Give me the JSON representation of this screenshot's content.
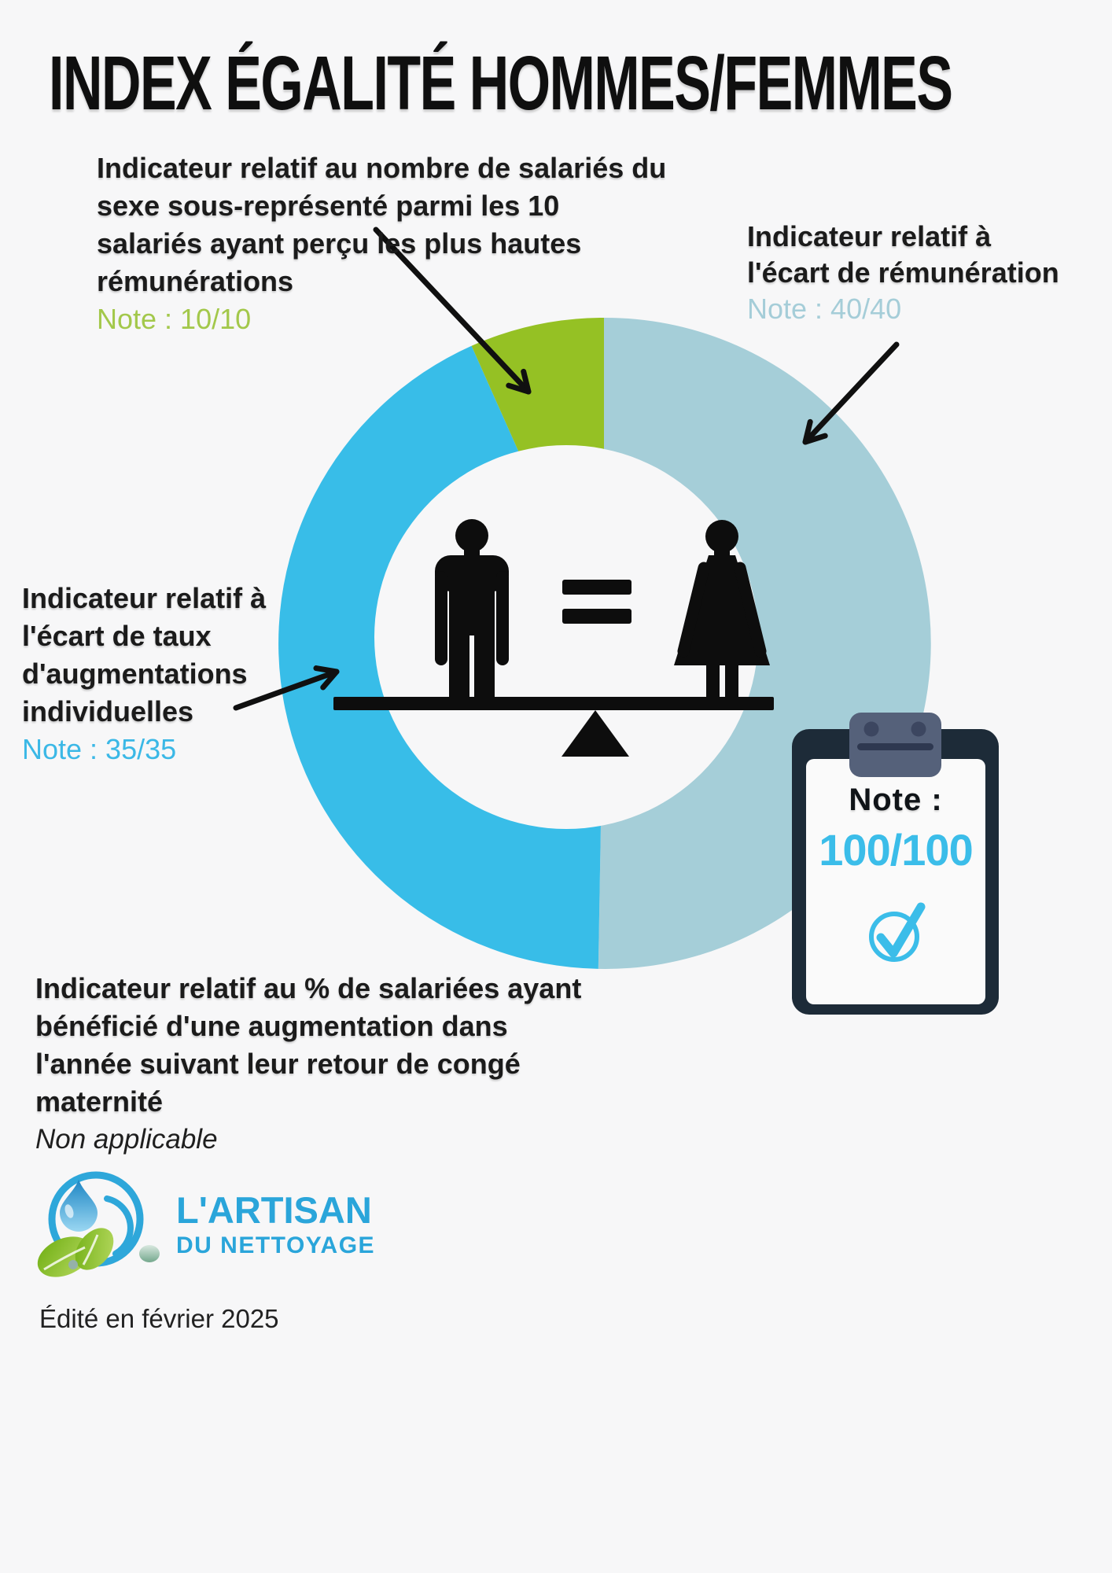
{
  "page": {
    "background": "#f7f7f8",
    "title": "INDEX ÉGALITÉ HOMMES/FEMMES",
    "footer": "Édité en février 2025"
  },
  "annotations": {
    "top_left": {
      "lines": [
        "Indicateur relatif au nombre de salariés du",
        "sexe sous-représenté parmi les 10",
        "salariés ayant perçu les plus hautes",
        "rémunérations"
      ],
      "note": "Note : 10/10",
      "note_color": "#a3c84b"
    },
    "top_right": {
      "lines": [
        "Indicateur relatif à",
        "l'écart de rémunération"
      ],
      "note": "Note : 40/40",
      "note_color": "#a5cdd8"
    },
    "left": {
      "lines": [
        "Indicateur relatif à",
        "l'écart de taux",
        "d'augmentations",
        "individuelles"
      ],
      "note": "Note : 35/35",
      "note_color": "#3bb8e6"
    },
    "bottom": {
      "lines": [
        "Indicateur relatif au % de salariées ayant",
        "bénéficié d'une augmentation dans",
        "l'année suivant leur retour de congé",
        "maternité"
      ],
      "note": "Non applicable"
    }
  },
  "chart_data": {
    "type": "pie",
    "subtype": "donut",
    "title": "Index égalité hommes/femmes",
    "unit": "points",
    "legend_position": "none",
    "segments": [
      {
        "label": "Écart de rémunération",
        "value": 40,
        "max": 40,
        "color": "#a5ced8",
        "sweep_deg": 181
      },
      {
        "label": "Écart de taux d'augmentations individuelles",
        "value": 35,
        "max": 35,
        "color": "#38bde8",
        "sweep_deg": 155
      },
      {
        "label": "Salariés du sexe sous-représenté parmi les 10 plus hautes rémunérations",
        "value": 10,
        "max": 10,
        "color": "#95c124",
        "sweep_deg": 24
      }
    ],
    "center_icon": "man-equals-woman-on-balance",
    "total_score": "100/100"
  },
  "clipboard": {
    "note_label": "Note :",
    "score": "100/100",
    "score_color": "#3bbde9"
  },
  "logo": {
    "line1": "L'ARTISAN",
    "line2": "DU NETTOYAGE",
    "color": "#2aa5da"
  }
}
